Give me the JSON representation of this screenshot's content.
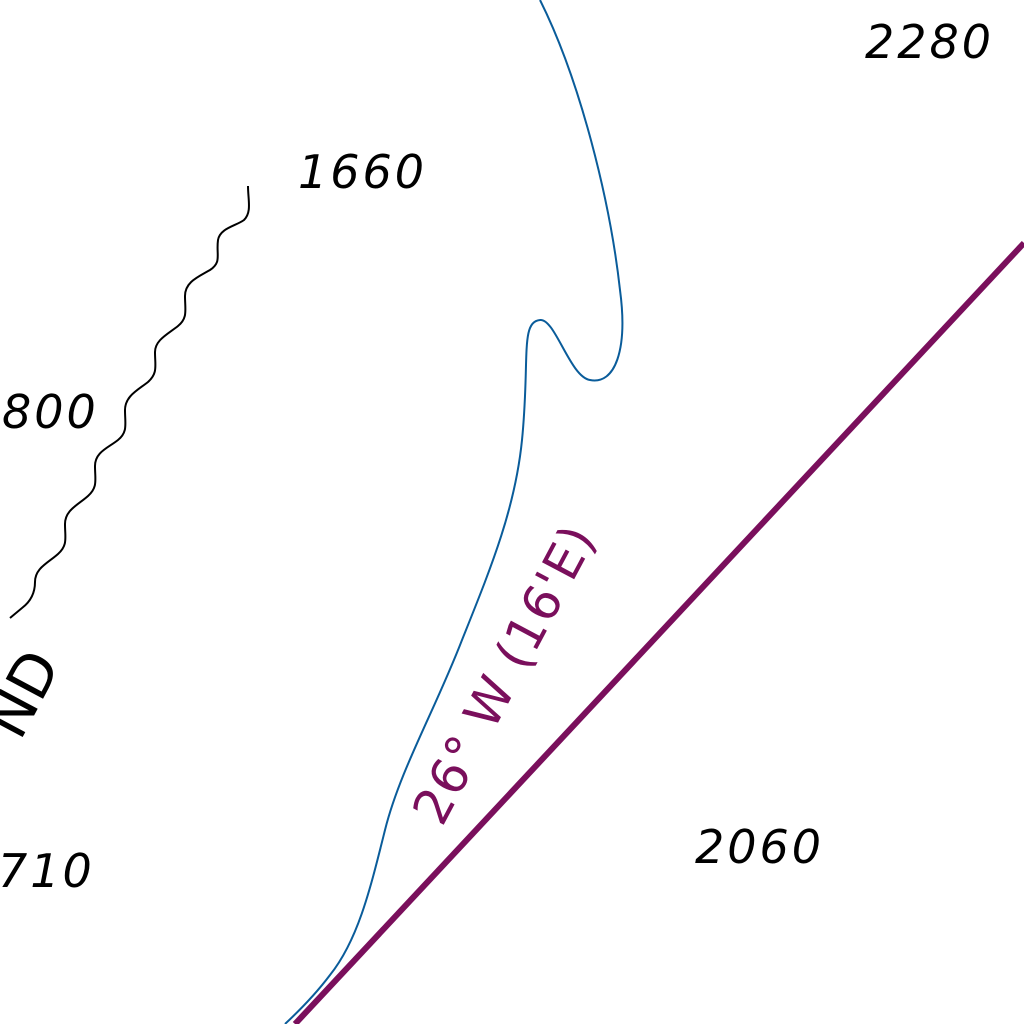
{
  "map": {
    "colors": {
      "background": "#ffffff",
      "depth_text": "#000000",
      "cable_line": "#000000",
      "contour": "#0a5c9a",
      "magnetic_variation": "#7a0f5c"
    },
    "soundings": [
      {
        "label": "2280"
      },
      {
        "label": "1660"
      },
      {
        "label": "800"
      },
      {
        "label": "710"
      },
      {
        "label": "2060"
      }
    ],
    "magnetic_variation_label": "26° W (16'E)",
    "area_label_fragment": "ND"
  }
}
